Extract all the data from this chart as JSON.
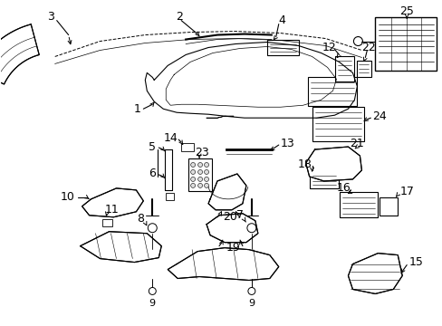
{
  "background": "#ffffff",
  "line_color": "#000000",
  "fig_width": 4.89,
  "fig_height": 3.6,
  "dpi": 100
}
